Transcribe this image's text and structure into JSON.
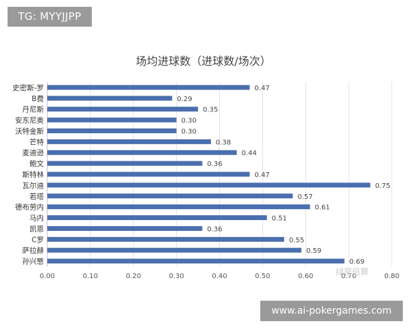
{
  "badges": {
    "top_left": "TG: MYYJJPP",
    "bottom_right": "www.ai-pokergames.com"
  },
  "watermark": "绿茵倍算",
  "chart_data": {
    "type": "bar",
    "orientation": "horizontal",
    "title": "场均进球数（进球数/场次）",
    "xlabel": "",
    "ylabel": "",
    "xlim": [
      0,
      0.8
    ],
    "x_ticks": [
      "0.00",
      "0.10",
      "0.20",
      "0.30",
      "0.40",
      "0.50",
      "0.60",
      "0.70",
      "0.80"
    ],
    "grid": "vertical",
    "bar_color": "#4a6fae",
    "categories": [
      "史密斯-罗",
      "B费",
      "丹尼斯",
      "安东尼奥",
      "沃特金斯",
      "芒特",
      "麦迪逊",
      "鲍文",
      "斯特林",
      "瓦尔迪",
      "若塔",
      "德布劳内",
      "马内",
      "凯恩",
      "C罗",
      "萨拉赫",
      "孙兴慜"
    ],
    "values": [
      0.47,
      0.29,
      0.35,
      0.3,
      0.3,
      0.38,
      0.44,
      0.36,
      0.47,
      0.75,
      0.57,
      0.61,
      0.51,
      0.36,
      0.55,
      0.59,
      0.69
    ],
    "value_labels": [
      "0.47",
      "0.29",
      "0.35",
      "0.30",
      "0.30",
      "0.38",
      "0.44",
      "0.36",
      "0.47",
      "0.75",
      "0.57",
      "0.61",
      "0.51",
      "0.36",
      "0.55",
      "0.59",
      "0.69"
    ]
  }
}
